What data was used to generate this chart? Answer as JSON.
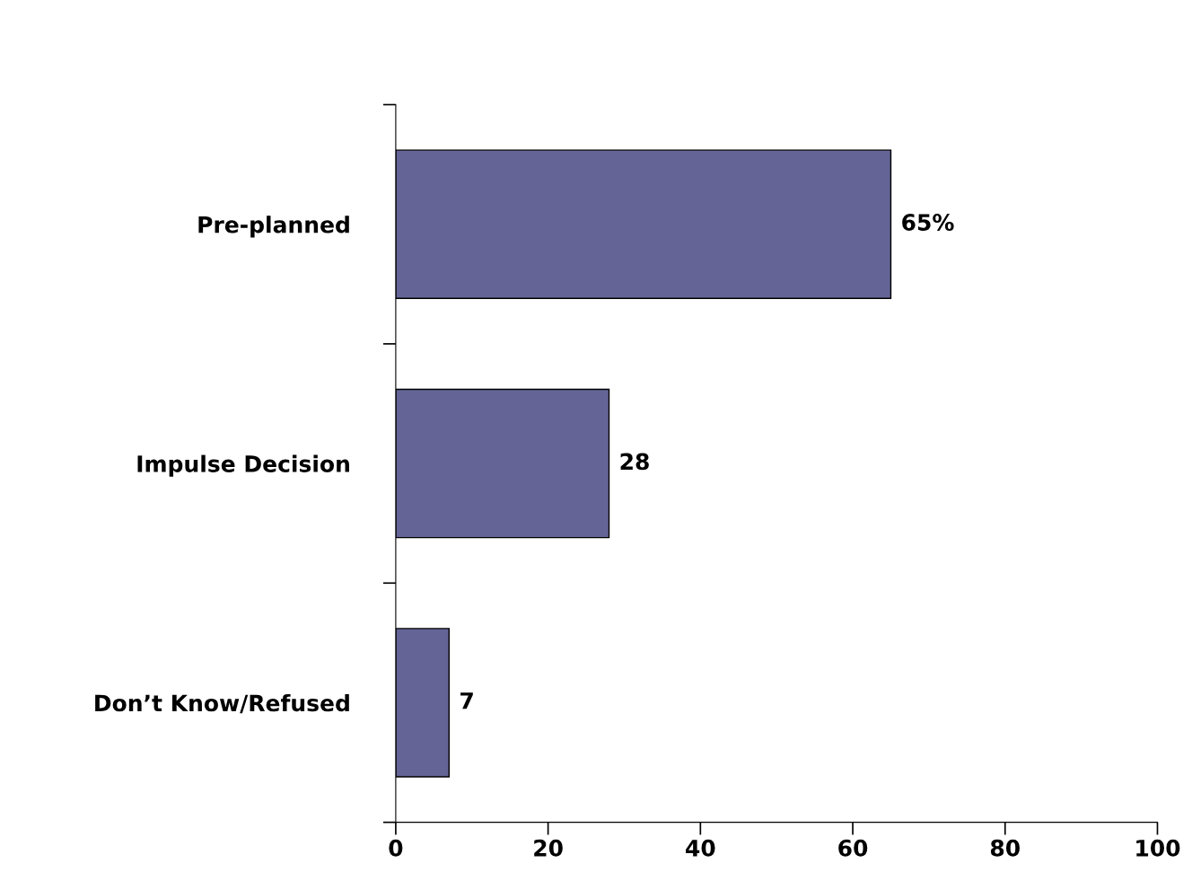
{
  "chart_data": {
    "type": "bar",
    "orientation": "horizontal",
    "categories": [
      "Pre-planned",
      "Impulse Decision",
      "Don’t Know/Refused"
    ],
    "values": [
      65,
      28,
      7
    ],
    "value_labels": [
      "65%",
      "28",
      "7"
    ],
    "color": "#646496",
    "xlim": [
      0,
      100
    ],
    "xticks": [
      0,
      20,
      40,
      60,
      80,
      100
    ],
    "grid": false,
    "legend": false
  }
}
